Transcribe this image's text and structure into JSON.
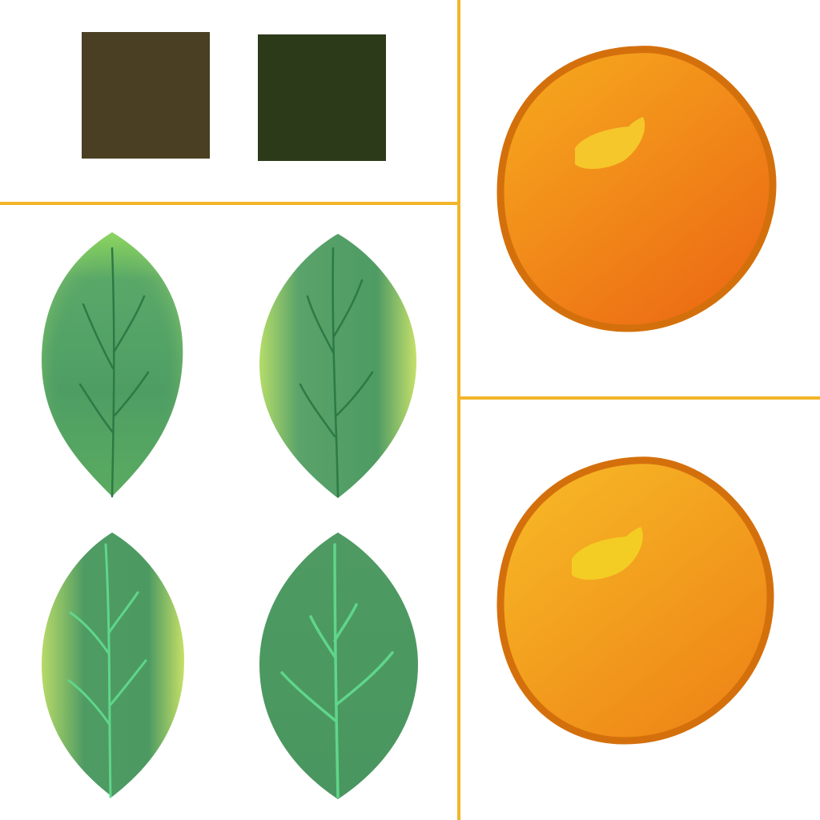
{
  "colors": {
    "background": "#ffffff",
    "divider": "#f2b52a",
    "swatch_brown": "#4a3f22",
    "swatch_dark_green": "#2c3a1a",
    "leaf_base": "#4c9a62",
    "leaf_light": "#9fd86a",
    "leaf_yellow": "#c8e06a",
    "vein_dark": "#2e7a45",
    "vein_light": "#5fd68a",
    "orange_outline": "#d4700c",
    "orange_light": "#f5a21d",
    "orange_dark": "#ec6a14",
    "orange_highlight": "#f5c72a"
  },
  "swatches": [
    {
      "name": "brown-swatch",
      "color": "#4a3f22"
    },
    {
      "name": "dark-green-swatch",
      "color": "#2c3a1a"
    }
  ],
  "leaves": [
    {
      "name": "leaf-1",
      "vein_style": "dark",
      "highlight": "top"
    },
    {
      "name": "leaf-2",
      "vein_style": "dark",
      "highlight": "edges"
    },
    {
      "name": "leaf-3",
      "vein_style": "light",
      "highlight": "edges"
    },
    {
      "name": "leaf-4",
      "vein_style": "light",
      "highlight": "none"
    }
  ],
  "oranges": [
    {
      "name": "orange-1",
      "fill_top": "#f5a21d",
      "fill_bottom": "#ec6a14"
    },
    {
      "name": "orange-2",
      "fill_top": "#f6b325",
      "fill_bottom": "#ee8516"
    }
  ]
}
